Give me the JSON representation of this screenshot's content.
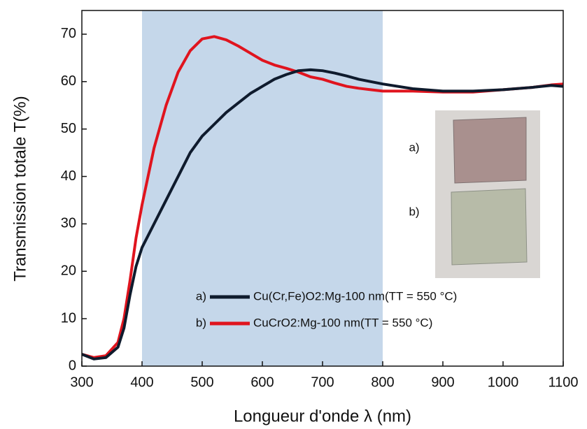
{
  "chart_data": {
    "type": "line",
    "xlabel": "Longueur d'onde λ (nm)",
    "ylabel": "Transmission totale T(%)",
    "x": [
      300,
      320,
      340,
      360,
      370,
      380,
      390,
      400,
      420,
      440,
      460,
      480,
      500,
      520,
      540,
      560,
      580,
      600,
      620,
      640,
      660,
      680,
      700,
      720,
      740,
      760,
      780,
      800,
      850,
      900,
      950,
      1000,
      1050,
      1080,
      1100
    ],
    "series": [
      {
        "label": "a)",
        "name": "Cu(Cr,Fe)O2:Mg-100 nm(TT = 550 °C)",
        "color": "#0f1b2d",
        "values": [
          2.5,
          1.5,
          1.8,
          4,
          8,
          15,
          21,
          25,
          30,
          35,
          40,
          45,
          48.5,
          51,
          53.5,
          55.5,
          57.5,
          59,
          60.5,
          61.5,
          62.3,
          62.5,
          62.3,
          61.8,
          61.2,
          60.5,
          60,
          59.5,
          58.5,
          58,
          58,
          58.3,
          58.8,
          59.2,
          59
        ]
      },
      {
        "label": "b)",
        "name": "CuCrO2:Mg-100 nm(TT = 550 °C)",
        "color": "#e0141e",
        "values": [
          2.5,
          1.8,
          2.2,
          5,
          10,
          18,
          27,
          34,
          46,
          55,
          62,
          66.5,
          69,
          69.5,
          68.8,
          67.5,
          66,
          64.5,
          63.5,
          62.8,
          62,
          61,
          60.5,
          59.7,
          59,
          58.6,
          58.3,
          58,
          58,
          57.8,
          57.8,
          58.3,
          58.8,
          59.3,
          59.5
        ]
      }
    ],
    "shaded_range": [
      400,
      800
    ],
    "shaded_color": "#c5d7ea",
    "xlim": [
      300,
      1100
    ],
    "xticks": [
      300,
      400,
      500,
      600,
      700,
      800,
      900,
      1000,
      1100
    ],
    "ylim": [
      0,
      75
    ],
    "yticks": [
      0,
      10,
      20,
      30,
      40,
      50,
      60,
      70
    ]
  }
}
